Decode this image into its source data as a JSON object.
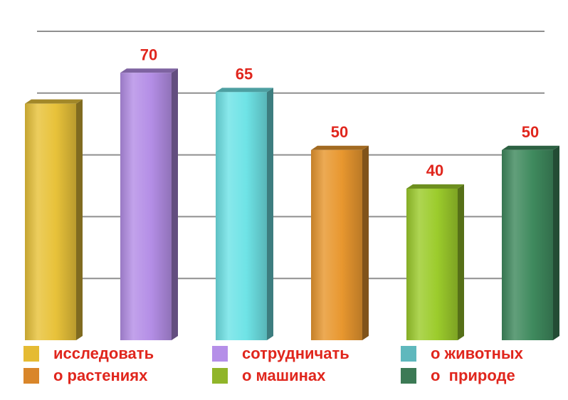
{
  "chart_data": {
    "type": "bar",
    "categories": [
      "исследовать",
      "сотрудничать",
      "о животных",
      "о растениях",
      "о машинах",
      "о  природе"
    ],
    "series": [
      {
        "values": [
          62,
          70,
          65,
          50,
          40,
          50
        ]
      }
    ],
    "data_labels": [
      "",
      "70",
      "65",
      "50",
      "40",
      "50"
    ],
    "colors": [
      "#e8c23a",
      "#b48ee6",
      "#6ee3e6",
      "#e8972f",
      "#9ccc2c",
      "#3f8a5e"
    ],
    "ylim": [
      0,
      80
    ],
    "grid": true,
    "legend_position": "bottom"
  },
  "legend": [
    {
      "label": "исследовать",
      "color": "#e5bb33"
    },
    {
      "label": "сотрудничать",
      "color": "#b58fe8"
    },
    {
      "label": "о животных",
      "color": "#5fb8bd"
    },
    {
      "label": "о растениях",
      "color": "#d9862a"
    },
    {
      "label": "о машинах",
      "color": "#90b52a"
    },
    {
      "label": "о  природе",
      "color": "#3c7a55"
    }
  ]
}
